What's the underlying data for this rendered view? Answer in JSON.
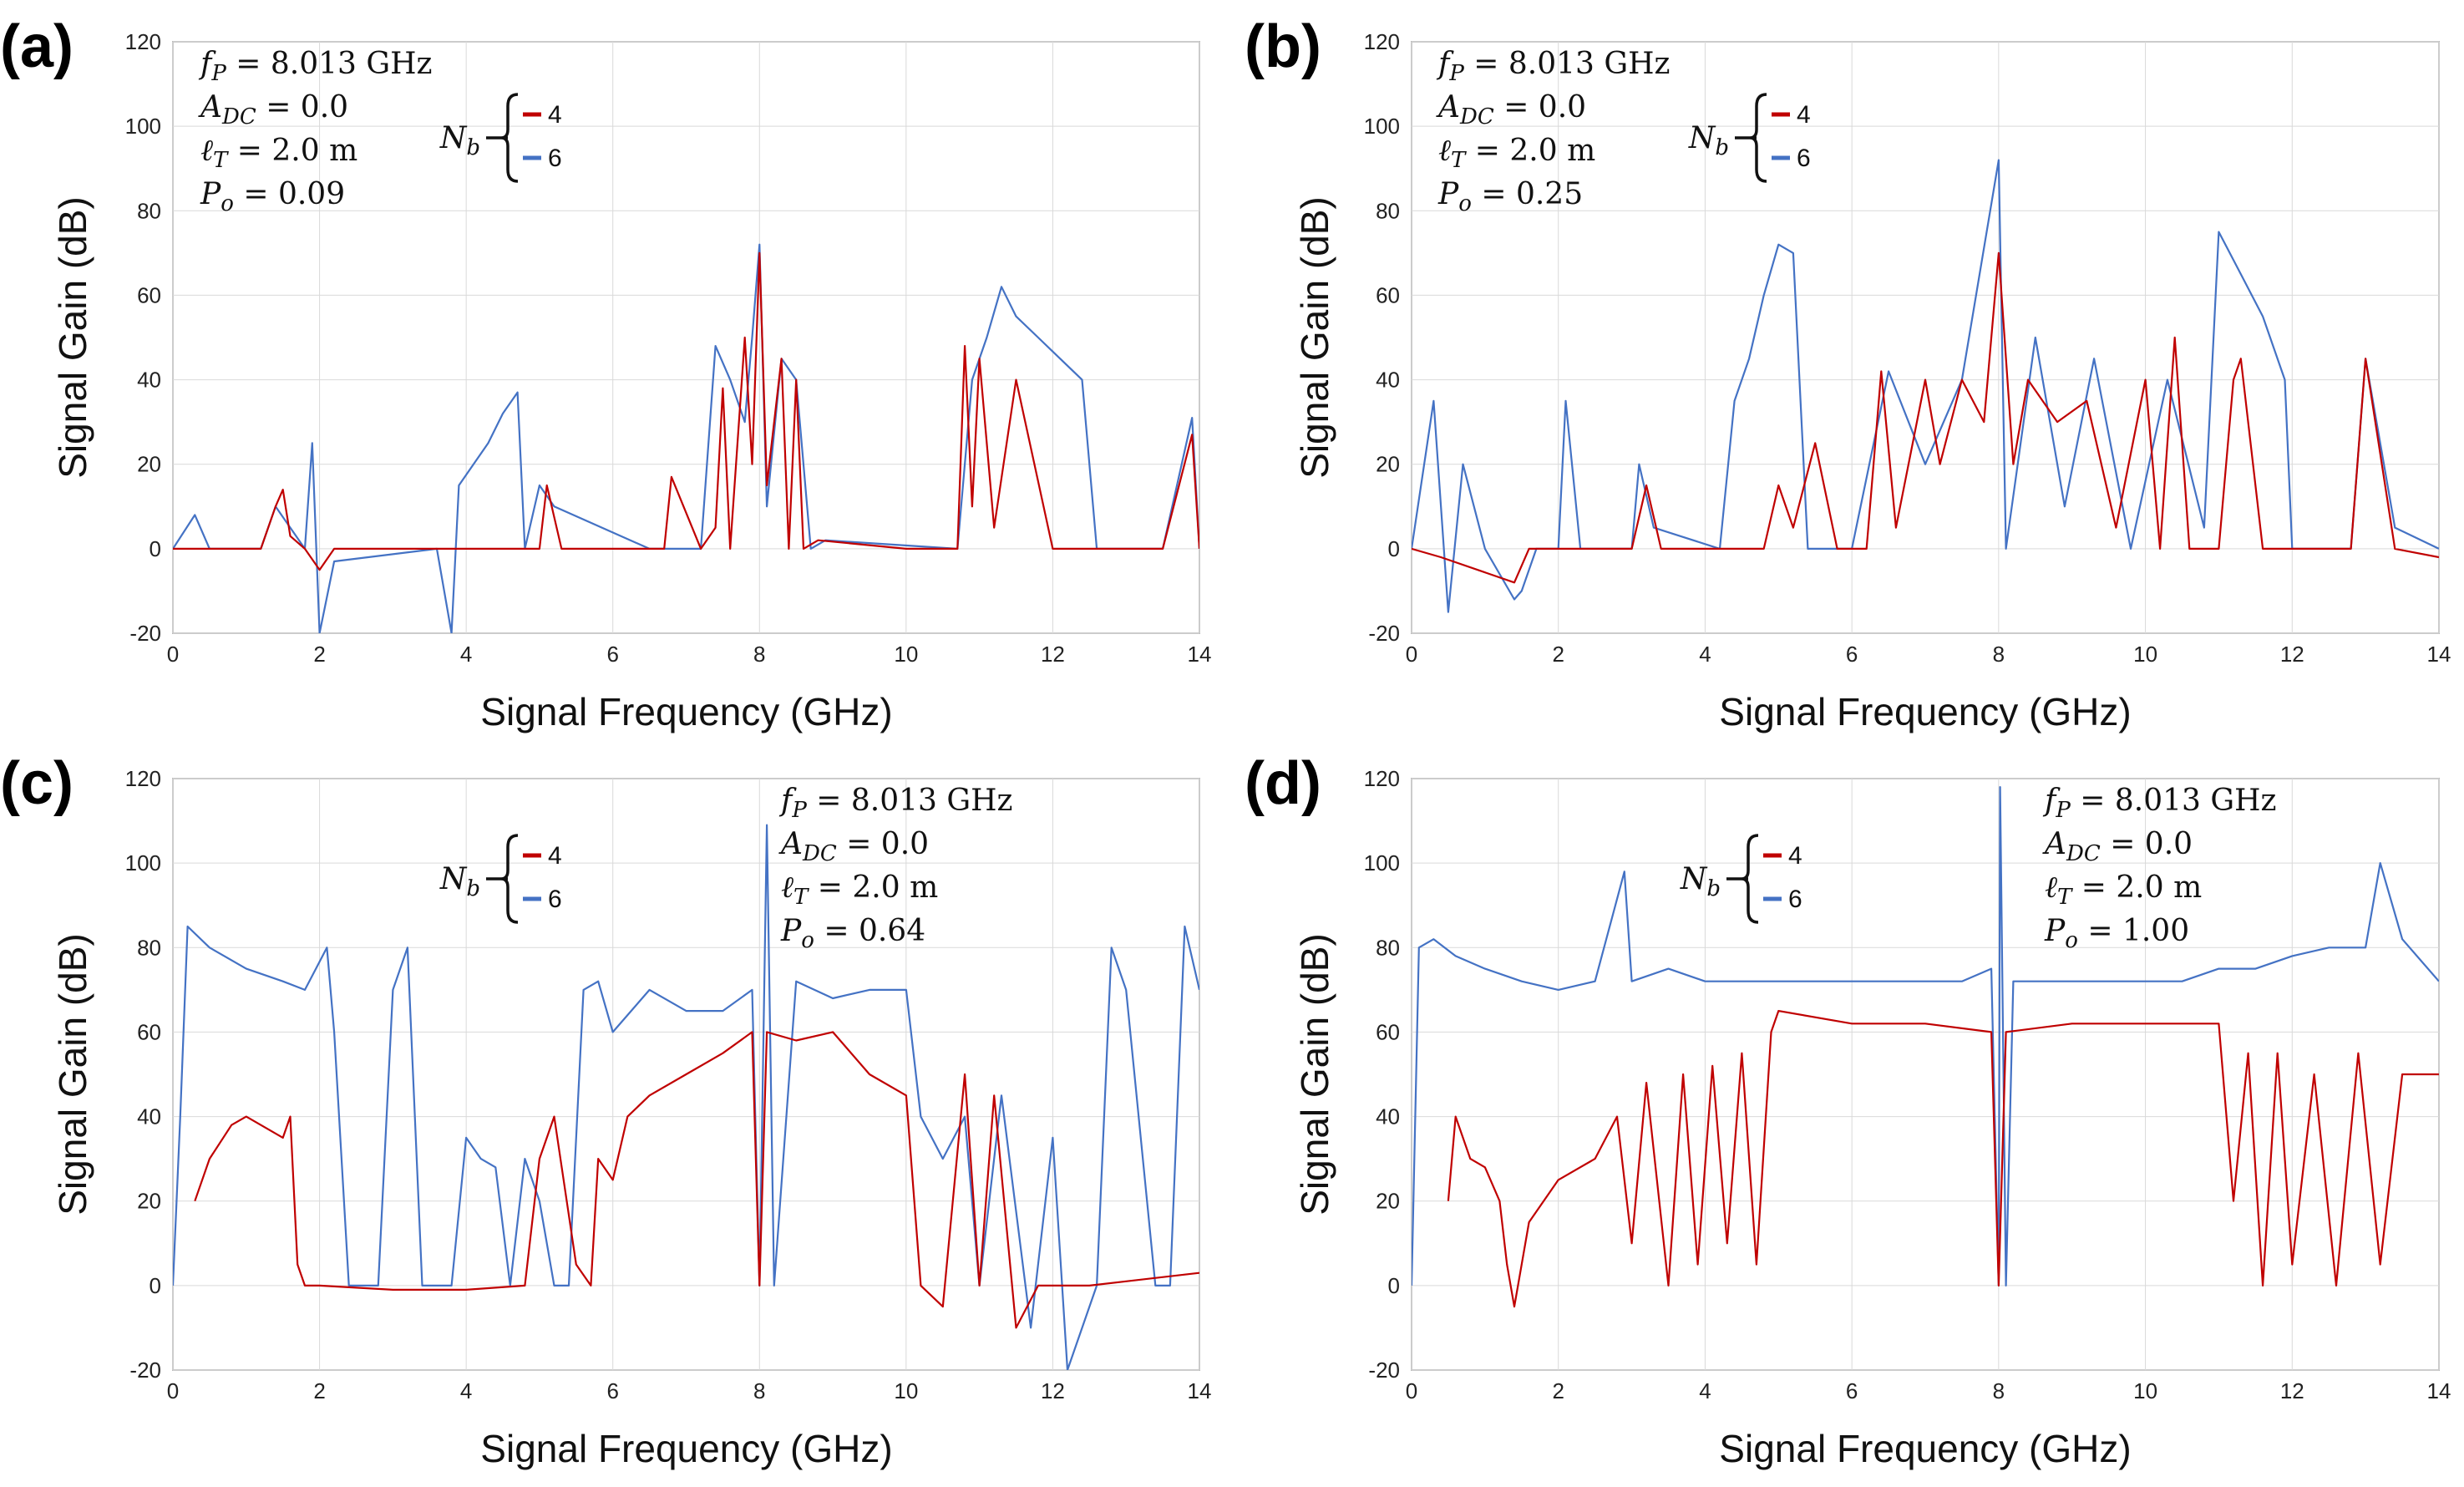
{
  "colors": {
    "series_4": "#c00000",
    "series_6": "#4472c4",
    "grid": "#d9d9d9",
    "axis": "#808080"
  },
  "chart_data": [
    {
      "panel": "(a)",
      "type": "line",
      "xlabel": "Signal Frequency (GHz)",
      "ylabel": "Signal Gain (dB)",
      "xlim": [
        0,
        14
      ],
      "ylim": [
        -20,
        120
      ],
      "xticks": [
        "0",
        "2",
        "4",
        "6",
        "8",
        "10",
        "12",
        "14"
      ],
      "yticks": [
        "-20",
        "0",
        "20",
        "40",
        "60",
        "80",
        "100",
        "120"
      ],
      "grid": true,
      "params": {
        "f_P": "8.013 GHz",
        "A_DC": "0.0",
        "l_T": "2.0 m",
        "P_o": "0.09"
      },
      "legend": {
        "title": "N_b",
        "entries": [
          "4",
          "6"
        ],
        "placement": "top-left"
      },
      "series": [
        {
          "name": "4",
          "x": [
            0,
            1.2,
            1.4,
            1.5,
            1.6,
            1.8,
            2.0,
            2.2,
            3.7,
            4.0,
            5.0,
            5.1,
            5.3,
            6.7,
            6.8,
            7.2,
            7.4,
            7.5,
            7.6,
            7.8,
            7.9,
            8.0,
            8.1,
            8.3,
            8.4,
            8.5,
            8.6,
            8.8,
            10.0,
            10.7,
            10.8,
            10.9,
            11.0,
            11.2,
            11.5,
            12.0,
            13.5,
            13.9,
            14.0
          ],
          "y": [
            0,
            0,
            10,
            14,
            3,
            0,
            -5,
            0,
            0,
            0,
            0,
            15,
            0,
            0,
            17,
            0,
            5,
            38,
            0,
            50,
            20,
            70,
            15,
            45,
            0,
            40,
            0,
            2,
            0,
            0,
            48,
            10,
            45,
            5,
            40,
            0,
            0,
            27,
            0
          ]
        },
        {
          "name": "6",
          "x": [
            0,
            0.3,
            0.5,
            1.2,
            1.4,
            1.6,
            1.8,
            1.9,
            2.0,
            2.2,
            3.6,
            3.8,
            3.9,
            4.1,
            4.3,
            4.5,
            4.7,
            4.8,
            5.0,
            5.2,
            6.5,
            7.2,
            7.4,
            7.6,
            7.8,
            7.9,
            8.0,
            8.1,
            8.3,
            8.5,
            8.7,
            8.9,
            10.7,
            10.9,
            11.1,
            11.3,
            11.5,
            11.8,
            12.1,
            12.4,
            12.6,
            13.5,
            13.9,
            14.0
          ],
          "y": [
            0,
            8,
            0,
            0,
            10,
            5,
            0,
            25,
            -20,
            -3,
            0,
            -20,
            15,
            20,
            25,
            32,
            37,
            0,
            15,
            10,
            0,
            0,
            48,
            40,
            30,
            50,
            72,
            10,
            45,
            40,
            0,
            2,
            0,
            40,
            50,
            62,
            55,
            50,
            45,
            40,
            0,
            0,
            31,
            0
          ]
        }
      ]
    },
    {
      "panel": "(b)",
      "type": "line",
      "xlabel": "Signal Frequency (GHz)",
      "ylabel": "Signal Gain (dB)",
      "xlim": [
        0,
        14
      ],
      "ylim": [
        -20,
        120
      ],
      "xticks": [
        "0",
        "2",
        "4",
        "6",
        "8",
        "10",
        "12",
        "14"
      ],
      "yticks": [
        "-20",
        "0",
        "20",
        "40",
        "60",
        "80",
        "100",
        "120"
      ],
      "grid": true,
      "params": {
        "f_P": "8.013 GHz",
        "A_DC": "0.0",
        "l_T": "2.0 m",
        "P_o": "0.25"
      },
      "legend": {
        "title": "N_b",
        "entries": [
          "4",
          "6"
        ],
        "placement": "top-left"
      },
      "series": [
        {
          "name": "4",
          "x": [
            0,
            0.4,
            1.4,
            1.6,
            3.0,
            3.2,
            3.4,
            4.8,
            5.0,
            5.2,
            5.5,
            5.8,
            6.2,
            6.4,
            6.6,
            7.0,
            7.2,
            7.5,
            7.8,
            8.0,
            8.2,
            8.4,
            8.8,
            9.2,
            9.6,
            10.0,
            10.2,
            10.4,
            10.6,
            11.0,
            11.2,
            11.3,
            11.6,
            12.0,
            12.8,
            13.0,
            13.4,
            14.0
          ],
          "y": [
            0,
            -2,
            -8,
            0,
            0,
            15,
            0,
            0,
            15,
            5,
            25,
            0,
            0,
            42,
            5,
            40,
            20,
            40,
            30,
            70,
            20,
            40,
            30,
            35,
            5,
            40,
            0,
            50,
            0,
            0,
            40,
            45,
            0,
            0,
            0,
            45,
            0,
            -2
          ]
        },
        {
          "name": "6",
          "x": [
            0,
            0.3,
            0.5,
            0.7,
            1.0,
            1.4,
            1.5,
            1.7,
            2.0,
            2.1,
            2.3,
            3.0,
            3.1,
            3.3,
            4.2,
            4.4,
            4.6,
            4.8,
            5.0,
            5.2,
            5.4,
            6.0,
            6.5,
            7.0,
            7.5,
            8.0,
            8.1,
            8.5,
            8.9,
            9.3,
            9.8,
            10.3,
            10.8,
            11.0,
            11.3,
            11.6,
            11.9,
            12.0,
            12.8,
            13.0,
            13.4,
            14.0
          ],
          "y": [
            0,
            35,
            -15,
            20,
            0,
            -12,
            -10,
            0,
            0,
            35,
            0,
            0,
            20,
            5,
            0,
            35,
            45,
            60,
            72,
            70,
            0,
            0,
            42,
            20,
            40,
            92,
            0,
            50,
            10,
            45,
            0,
            40,
            5,
            75,
            65,
            55,
            40,
            0,
            0,
            45,
            5,
            0
          ]
        }
      ]
    },
    {
      "panel": "(c)",
      "type": "line",
      "xlabel": "Signal Frequency (GHz)",
      "ylabel": "Signal Gain (dB)",
      "xlim": [
        0,
        14
      ],
      "ylim": [
        -20,
        120
      ],
      "xticks": [
        "0",
        "2",
        "4",
        "6",
        "8",
        "10",
        "12",
        "14"
      ],
      "yticks": [
        "-20",
        "0",
        "20",
        "40",
        "60",
        "80",
        "100",
        "120"
      ],
      "grid": true,
      "params": {
        "f_P": "8.013 GHz",
        "A_DC": "0.0",
        "l_T": "2.0 m",
        "P_o": "0.64"
      },
      "legend": {
        "title": "N_b",
        "entries": [
          "4",
          "6"
        ],
        "placement": "top-center"
      },
      "series": [
        {
          "name": "4",
          "x": [
            0.3,
            0.5,
            0.8,
            1.0,
            1.5,
            1.6,
            1.7,
            1.8,
            2.0,
            3.0,
            4.0,
            4.8,
            5.0,
            5.2,
            5.5,
            5.7,
            5.8,
            6.0,
            6.2,
            6.5,
            7.0,
            7.5,
            7.9,
            8.0,
            8.1,
            8.5,
            9.0,
            9.5,
            10.0,
            10.2,
            10.5,
            10.8,
            11.0,
            11.2,
            11.5,
            11.8,
            12.0,
            12.5,
            13.0,
            14.0
          ],
          "y": [
            20,
            30,
            38,
            40,
            35,
            40,
            5,
            0,
            0,
            -1,
            -1,
            0,
            30,
            40,
            5,
            0,
            30,
            25,
            40,
            45,
            50,
            55,
            60,
            0,
            60,
            58,
            60,
            50,
            45,
            0,
            -5,
            50,
            0,
            45,
            -10,
            0,
            0,
            0,
            1,
            3
          ]
        },
        {
          "name": "6",
          "x": [
            0,
            0.1,
            0.2,
            0.5,
            1.0,
            1.5,
            1.8,
            2.1,
            2.2,
            2.4,
            2.6,
            2.8,
            3.0,
            3.2,
            3.4,
            3.6,
            3.8,
            4.0,
            4.2,
            4.4,
            4.6,
            4.8,
            5.0,
            5.2,
            5.4,
            5.6,
            5.8,
            6.0,
            6.5,
            7.0,
            7.5,
            7.9,
            8.0,
            8.1,
            8.2,
            8.5,
            9.0,
            9.5,
            10.0,
            10.2,
            10.5,
            10.8,
            11.0,
            11.3,
            11.7,
            12.0,
            12.2,
            12.6,
            12.8,
            13.0,
            13.4,
            13.6,
            13.8,
            14.0
          ],
          "y": [
            0,
            40,
            85,
            80,
            75,
            72,
            70,
            80,
            60,
            0,
            0,
            0,
            70,
            80,
            0,
            0,
            0,
            35,
            30,
            28,
            0,
            30,
            20,
            0,
            0,
            70,
            72,
            60,
            70,
            65,
            65,
            70,
            0,
            109,
            0,
            72,
            68,
            70,
            70,
            40,
            30,
            40,
            0,
            45,
            -10,
            35,
            -20,
            0,
            80,
            70,
            0,
            0,
            85,
            70
          ]
        }
      ]
    },
    {
      "panel": "(d)",
      "type": "line",
      "xlabel": "Signal Frequency (GHz)",
      "ylabel": "Signal Gain (dB)",
      "xlim": [
        0,
        14
      ],
      "ylim": [
        -20,
        120
      ],
      "xticks": [
        "0",
        "2",
        "4",
        "6",
        "8",
        "10",
        "12",
        "14"
      ],
      "yticks": [
        "-20",
        "0",
        "20",
        "40",
        "60",
        "80",
        "100",
        "120"
      ],
      "grid": true,
      "params": {
        "f_P": "8.013 GHz",
        "A_DC": "0.0",
        "l_T": "2.0 m",
        "P_o": "1.00"
      },
      "legend": {
        "title": "N_b",
        "entries": [
          "4",
          "6"
        ],
        "placement": "top-center"
      },
      "series": [
        {
          "name": "4",
          "x": [
            0.5,
            0.6,
            0.8,
            1.0,
            1.2,
            1.3,
            1.4,
            1.6,
            1.8,
            2.0,
            2.5,
            2.8,
            3.0,
            3.2,
            3.5,
            3.7,
            3.9,
            4.1,
            4.3,
            4.5,
            4.7,
            4.9,
            5.0,
            6.0,
            7.0,
            7.9,
            8.0,
            8.1,
            9.0,
            10.0,
            11.0,
            11.2,
            11.4,
            11.6,
            11.8,
            12.0,
            12.3,
            12.6,
            12.9,
            13.2,
            13.5,
            14.0
          ],
          "y": [
            20,
            40,
            30,
            28,
            20,
            5,
            -5,
            15,
            20,
            25,
            30,
            40,
            10,
            48,
            0,
            50,
            5,
            52,
            10,
            55,
            5,
            60,
            65,
            62,
            62,
            60,
            0,
            60,
            62,
            62,
            62,
            20,
            55,
            0,
            55,
            5,
            50,
            0,
            55,
            5,
            50,
            50
          ]
        },
        {
          "name": "6",
          "x": [
            0,
            0.1,
            0.3,
            0.6,
            1.0,
            1.5,
            2.0,
            2.5,
            2.9,
            3.0,
            3.5,
            4.0,
            4.5,
            5.0,
            5.5,
            6.0,
            6.5,
            7.0,
            7.5,
            7.9,
            8.0,
            8.02,
            8.1,
            8.2,
            8.5,
            9.0,
            9.5,
            10.0,
            10.5,
            11.0,
            11.5,
            12.0,
            12.5,
            13.0,
            13.2,
            13.5,
            14.0
          ],
          "y": [
            0,
            80,
            82,
            78,
            75,
            72,
            70,
            72,
            98,
            72,
            75,
            72,
            72,
            72,
            72,
            72,
            72,
            72,
            72,
            75,
            0,
            118,
            0,
            72,
            72,
            72,
            72,
            72,
            72,
            75,
            75,
            78,
            80,
            80,
            100,
            82,
            72
          ]
        }
      ]
    }
  ]
}
